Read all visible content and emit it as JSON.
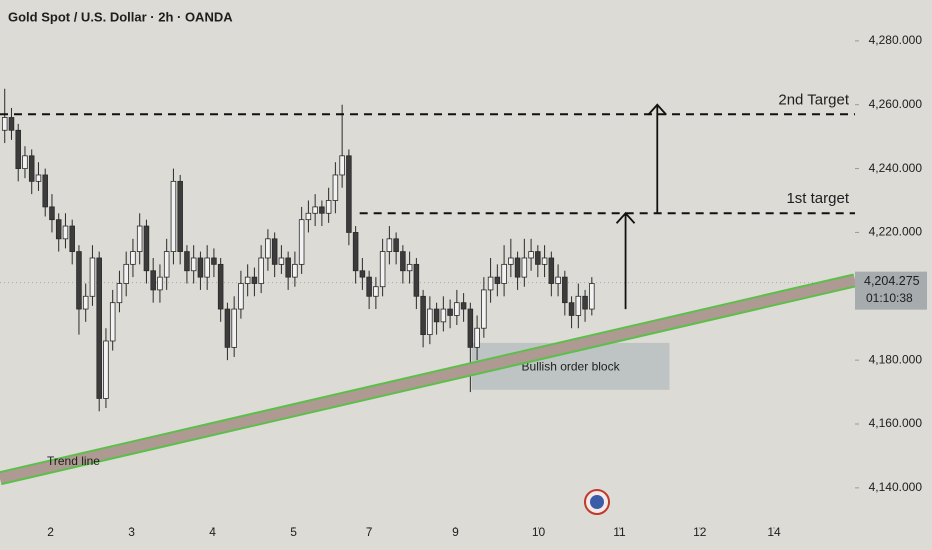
{
  "chart_data": {
    "type": "candlestick",
    "title": "Gold Spot / U.S. Dollar · 2h · OANDA",
    "open": [
      4252,
      4256,
      4252,
      4240,
      4244,
      4236,
      4238,
      4228,
      4224,
      4218,
      4222,
      4214,
      4196,
      4200,
      4212,
      4168,
      4186,
      4198,
      4204,
      4210,
      4214,
      4222,
      4208,
      4202,
      4206,
      4214,
      4236,
      4214,
      4208,
      4212,
      4206,
      4212,
      4210,
      4196,
      4184,
      4196,
      4204,
      4206,
      4204,
      4212,
      4218,
      4210,
      4212,
      4206,
      4210,
      4224,
      4226,
      4228,
      4226,
      4230,
      4238,
      4244,
      4220,
      4208,
      4206,
      4200,
      4203,
      4214,
      4218,
      4214,
      4208,
      4210,
      4200,
      4188,
      4196,
      4192,
      4196,
      4194,
      4198,
      4196,
      4184,
      4190,
      4202,
      4206,
      4204,
      4210,
      4212,
      4206,
      4212,
      4214,
      4210,
      4212,
      4204,
      4206,
      4198,
      4194,
      4200,
      4196
    ],
    "high": [
      4265,
      4259,
      4254,
      4247,
      4246,
      4242,
      4240,
      4232,
      4226,
      4226,
      4224,
      4216,
      4204,
      4216,
      4214,
      4190,
      4202,
      4208,
      4214,
      4218,
      4226,
      4224,
      4212,
      4210,
      4218,
      4240,
      4238,
      4216,
      4216,
      4214,
      4216,
      4215,
      4212,
      4198,
      4200,
      4208,
      4210,
      4209,
      4216,
      4221,
      4220,
      4216,
      4214,
      4214,
      4228,
      4230,
      4232,
      4230,
      4234,
      4242,
      4260,
      4246,
      4222,
      4212,
      4208,
      4206,
      4218,
      4222,
      4220,
      4216,
      4214,
      4212,
      4202,
      4200,
      4198,
      4200,
      4199,
      4202,
      4201,
      4198,
      4194,
      4206,
      4212,
      4210,
      4216,
      4218,
      4214,
      4218,
      4218,
      4216,
      4216,
      4214,
      4210,
      4208,
      4200,
      4204,
      4202,
      4206
    ],
    "low": [
      4248,
      4249,
      4236,
      4237,
      4232,
      4233,
      4225,
      4220,
      4214,
      4215,
      4210,
      4188,
      4192,
      4197,
      4164,
      4165,
      4183,
      4195,
      4200,
      4206,
      4210,
      4204,
      4198,
      4198,
      4202,
      4210,
      4210,
      4204,
      4204,
      4202,
      4202,
      4206,
      4192,
      4180,
      4181,
      4193,
      4200,
      4200,
      4201,
      4208,
      4206,
      4207,
      4202,
      4203,
      4207,
      4220,
      4222,
      4222,
      4223,
      4226,
      4234,
      4216,
      4204,
      4202,
      4196,
      4196,
      4200,
      4210,
      4210,
      4204,
      4204,
      4196,
      4184,
      4185,
      4188,
      4189,
      4190,
      4191,
      4192,
      4170,
      4180,
      4187,
      4198,
      4200,
      4200,
      4206,
      4202,
      4203,
      4208,
      4206,
      4206,
      4200,
      4200,
      4194,
      4190,
      4190,
      4192,
      4194
    ],
    "close": [
      4256,
      4252,
      4240,
      4244,
      4236,
      4238,
      4228,
      4224,
      4218,
      4222,
      4214,
      4196,
      4200,
      4212,
      4168,
      4186,
      4198,
      4204,
      4210,
      4214,
      4222,
      4208,
      4202,
      4206,
      4214,
      4236,
      4214,
      4208,
      4212,
      4206,
      4212,
      4210,
      4196,
      4184,
      4196,
      4204,
      4206,
      4204,
      4212,
      4218,
      4210,
      4212,
      4206,
      4210,
      4224,
      4226,
      4228,
      4226,
      4230,
      4238,
      4244,
      4220,
      4208,
      4206,
      4200,
      4203,
      4214,
      4218,
      4214,
      4208,
      4210,
      4200,
      4188,
      4196,
      4192,
      4196,
      4194,
      4198,
      4196,
      4184,
      4190,
      4202,
      4206,
      4204,
      4210,
      4212,
      4206,
      4212,
      4214,
      4210,
      4212,
      4204,
      4206,
      4198,
      4194,
      4200,
      4196,
      4204
    ],
    "up_color": "#f2f2f2",
    "down_color": "#3c3c3c",
    "xlim": [
      -0.7,
      126
    ],
    "ylim": [
      4131.5,
      4292.8
    ],
    "xticks": [
      {
        "value": 6.8,
        "label": "2"
      },
      {
        "value": 18.8,
        "label": "3"
      },
      {
        "value": 30.8,
        "label": "4"
      },
      {
        "value": 42.8,
        "label": "5"
      },
      {
        "value": 54,
        "label": "7"
      },
      {
        "value": 66.8,
        "label": "9"
      },
      {
        "value": 79.1,
        "label": "10"
      },
      {
        "value": 91.1,
        "label": "11"
      },
      {
        "value": 103,
        "label": "12"
      },
      {
        "value": 114,
        "label": "14"
      }
    ],
    "yticks": [
      {
        "value": 4280,
        "label": "4,280.000"
      },
      {
        "value": 4260,
        "label": "4,260.000"
      },
      {
        "value": 4240,
        "label": "4,240.000"
      },
      {
        "value": 4220,
        "label": "4,220.000"
      },
      {
        "value": 4180,
        "label": "4,180.000"
      },
      {
        "value": 4160,
        "label": "4,160.000"
      },
      {
        "value": 4140,
        "label": "4,140.000"
      }
    ],
    "last_price": {
      "value": 4204.275,
      "label": "4,204.275"
    },
    "countdown": "01:10:38",
    "levels": [
      {
        "label": "2nd Target",
        "value": 4257,
        "x_from": -0.7
      },
      {
        "label": "1st target",
        "value": 4226,
        "x_from": 52.6
      }
    ],
    "arrows": [
      {
        "x": 92,
        "from": 4196,
        "to": 4226
      },
      {
        "x": 96.7,
        "from": 4226,
        "to": 4260
      }
    ],
    "trend_line": {
      "label": "Trend line",
      "x": [
        -0.7,
        126
      ],
      "y": [
        4143,
        4205
      ],
      "color": "#5cbf4a"
    },
    "order_block": {
      "label": "Bullish order block",
      "x": [
        69.2,
        98.5
      ],
      "y": [
        4170.7,
        4185.4
      ]
    }
  }
}
